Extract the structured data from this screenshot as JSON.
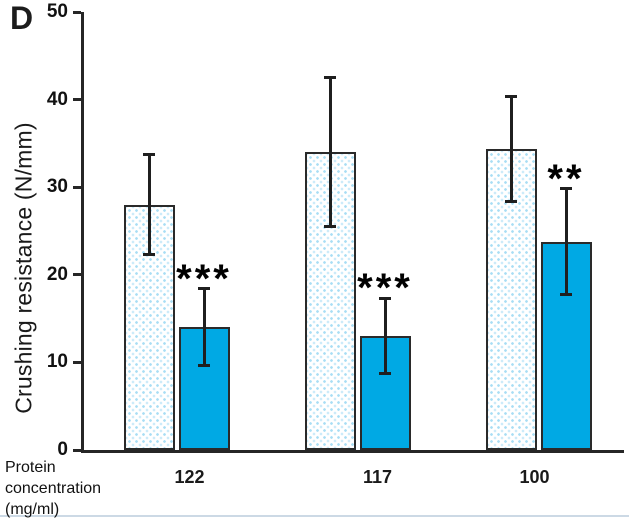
{
  "panel_label": "D",
  "axes": {
    "y_label": "Crushing resistance (N/mm)",
    "x_caption_lines": [
      "Protein",
      "concentration",
      "(mg/ml)"
    ]
  },
  "chart_data": {
    "type": "bar",
    "title": "",
    "ylabel": "Crushing resistance (N/mm)",
    "xlabel": "Protein concentration (mg/ml)",
    "ylim": [
      0,
      50
    ],
    "yticks": [
      0,
      10,
      20,
      30,
      40,
      50
    ],
    "grid": false,
    "legend": "none",
    "categories": [
      "122",
      "117",
      "100"
    ],
    "series": [
      {
        "name": "dotted-pattern-bar",
        "fill": "stippled-white",
        "values": [
          28.0,
          34.0,
          34.4
        ],
        "errors": [
          5.7,
          8.5,
          6.0
        ]
      },
      {
        "name": "solid-cyan-bar",
        "fill": "solid-cyan",
        "color": "#00A9E4",
        "values": [
          14.0,
          13.0,
          23.8
        ],
        "errors": [
          4.4,
          4.3,
          6.0
        ]
      }
    ],
    "significance_on_cyan_bars": [
      "***",
      "***",
      "**"
    ]
  },
  "colors": {
    "cyan_bar": "#00A9E4",
    "stipple_dot": "#A8DDF4",
    "axis": "#262626",
    "bottom_divider": "#CCD9E5"
  }
}
